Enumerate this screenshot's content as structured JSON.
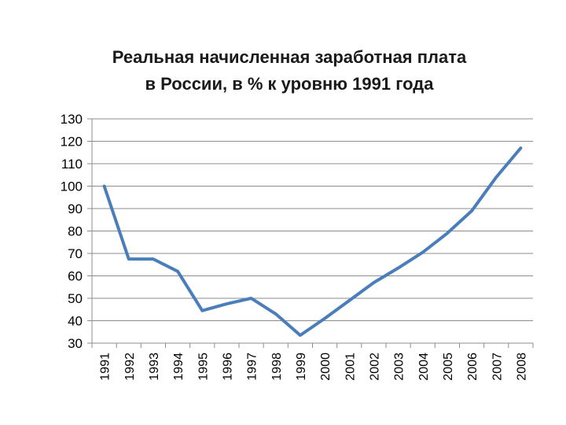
{
  "chart_data": {
    "type": "line",
    "title_lines": [
      "Реальная начисленная заработная плата",
      "в России, в % к уровню 1991 года"
    ],
    "xlabel": "",
    "ylabel": "",
    "ylim": [
      30,
      130
    ],
    "y_ticks": [
      30,
      40,
      50,
      60,
      70,
      80,
      90,
      100,
      110,
      120,
      130
    ],
    "grid": true,
    "legend": "none",
    "categories": [
      "1991",
      "1992",
      "1993",
      "1994",
      "1995",
      "1996",
      "1997",
      "1998",
      "1999",
      "2000",
      "2001",
      "2002",
      "2003",
      "2004",
      "2005",
      "2006",
      "2007",
      "2008"
    ],
    "series": [
      {
        "color": "#4a7ebb",
        "values": [
          100,
          67.5,
          67.5,
          62,
          44.5,
          47.5,
          50,
          43,
          33.5,
          41,
          49,
          57,
          63.5,
          70.5,
          79,
          89,
          104,
          117
        ]
      }
    ]
  }
}
